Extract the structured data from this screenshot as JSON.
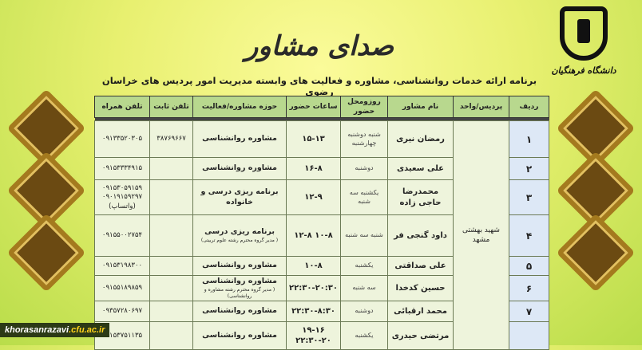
{
  "header": {
    "title": "صدای مشاور",
    "subtitle": "برنامه ارائه خدمات روانشناسی، مشاوره و فعالیت های وابسته مدیریت امور پردیس های خراسان رضوی",
    "logo_text": "دانشگاه فرهنگیان"
  },
  "table": {
    "columns": [
      "ردیف",
      "پردیس/واحد",
      "نام مشاور",
      "روزومحل حضور",
      "ساعات حضور",
      "حوزه مشاوره/فعالیت",
      "تلفن ثابت",
      "تلفن همراه"
    ],
    "campus": "شهید بهشتی مشهد",
    "rows": [
      {
        "idx": "۱",
        "name": "رمضان نیری",
        "day": "شنبه دوشنبه چهارشنبه",
        "hours": "۱۵-۱۳",
        "field": "مشاوره روانشناسی",
        "note": "",
        "tel": "۳۸۷۶۹۶۶۷",
        "mobile": "۰۹۱۳۳۵۲۰۳۰۵"
      },
      {
        "idx": "۲",
        "name": "علی سعیدی",
        "day": "دوشنبه",
        "hours": "۱۶-۸",
        "field": "مشاوره روانشناسی",
        "note": "",
        "tel": "",
        "mobile": "۰۹۱۵۳۳۳۴۹۱۵"
      },
      {
        "idx": "۳",
        "name": "محمدرضا حاجی زاده",
        "day": "یکشنبه سه شنبه",
        "hours": "۱۲-۹",
        "field": "برنامه ریزی درسی و خانواده",
        "note": "",
        "tel": "",
        "mobile": "۰۹۱۵۳۰۵۹۱۵۹ ۰۹۰۱۹۱۵۹۲۹۷ (واتساپ)"
      },
      {
        "idx": "۴",
        "name": "داود گنجی فر",
        "day": "شنبه سه شنبه",
        "hours": "۱۰-۸ ۱۲-۸",
        "field": "برنامه ریزی درسی",
        "note": "( مدیر گروه محترم رشته علوم تربیتی)",
        "tel": "",
        "mobile": "۰۹۱۵۵۰۰۲۷۵۴"
      },
      {
        "idx": "۵",
        "name": "علی صداقتی",
        "day": "یکشنبه",
        "hours": "۱۰-۸",
        "field": "مشاوره روانشناسی",
        "note": "",
        "tel": "",
        "mobile": "۰۹۱۵۳۱۹۸۳۰۰"
      },
      {
        "idx": "۶",
        "name": "حسین کدخدا",
        "day": "سه شنبه",
        "hours": "۲۲:۳۰-۲۰:۳۰",
        "field": "مشاوره روانشناسی",
        "note": "( مدیر گروه محترم رشته مشاوره و روانشناسی)",
        "tel": "",
        "mobile": "۰۹۱۵۵۱۸۹۸۵۹"
      },
      {
        "idx": "۷",
        "name": "محمد ارقبائی",
        "day": "دوشنبه",
        "hours": "۲۲:۳۰-۸:۳۰",
        "field": "مشاوره روانشناسی",
        "note": "",
        "tel": "",
        "mobile": "۰۹۳۵۷۲۸۰۶۹۷"
      },
      {
        "idx": "",
        "name": "مرتضی حیدری",
        "day": "یکشنبه",
        "hours": "۱۹-۱۶ ۲۲:۳۰-۲۰",
        "field": "مشاوره روانشناسی",
        "note": "",
        "tel": "",
        "mobile": "۰۹۱۵۳۷۵۱۱۳۵"
      }
    ]
  },
  "footer": {
    "site_main": "khorasanrazavi",
    "site_suffix": ".cfu.ac.ir"
  },
  "colors": {
    "header_cell": "#b8d88e",
    "body_cell": "#eef4dc",
    "index_cell": "#dde8f6",
    "ornament": "#a47a1e"
  }
}
